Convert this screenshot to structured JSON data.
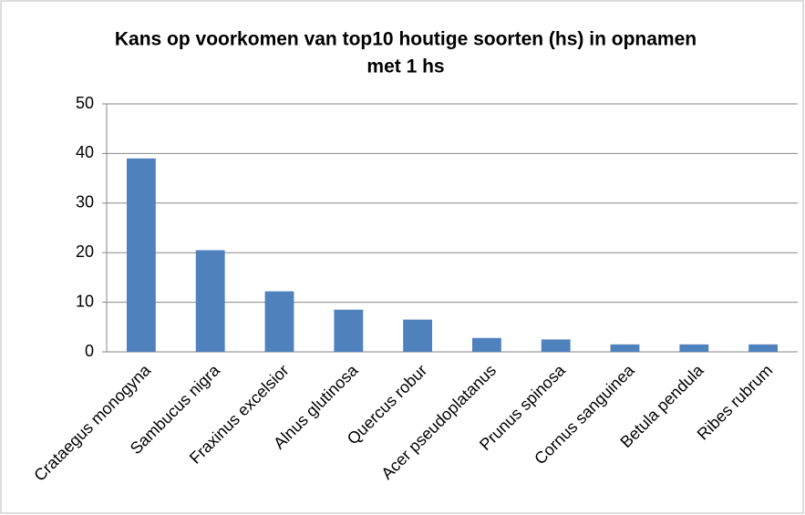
{
  "chart_data": {
    "type": "bar",
    "title": [
      "Kans op voorkomen van top10 houtige soorten (hs) in opnamen",
      "met 1 hs"
    ],
    "categories": [
      "Crataegus monogyna",
      "Sambucus nigra",
      "Fraxinus excelsior",
      "Alnus glutinosa",
      "Quercus robur",
      "Acer pseudoplatanus",
      "Prunus spinosa",
      "Cornus sanguinea",
      "Betula pendula",
      "Ribes rubrum"
    ],
    "values": [
      39,
      20.5,
      12.2,
      8.5,
      6.5,
      2.8,
      2.5,
      1.5,
      1.5,
      1.5
    ],
    "color": "#4f81bd",
    "ylim": [
      0,
      50
    ],
    "yticks": [
      0,
      10,
      20,
      30,
      40,
      50
    ],
    "grid": true
  }
}
